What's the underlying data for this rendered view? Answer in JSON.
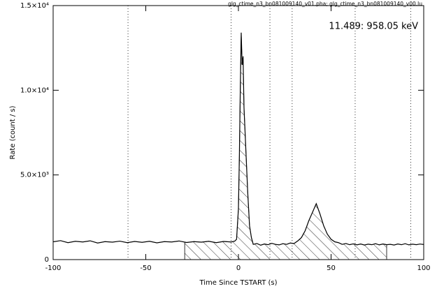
{
  "chart_data": {
    "type": "line",
    "title": "glg_ctime_n3_bn081009140_v01.pha; glg_ctime_n3_bn081009140_v00.lu",
    "annotation": "11.489: 958.05 keV",
    "x_label": "Time Since TSTART (s)",
    "y_label": "Rate (count / s)",
    "xlim": [
      -100,
      100
    ],
    "ylim": [
      0,
      15000
    ],
    "xticks": [
      -100,
      -50,
      0,
      50,
      100
    ],
    "yticks": [
      0,
      {
        "value": 5000,
        "label": "5.0×10³"
      },
      {
        "value": 10000,
        "label": "1.0×10⁴"
      },
      {
        "value": 15000,
        "label": "1.5×10⁴"
      }
    ],
    "dotted_lines": [
      -59.6,
      -4,
      17,
      29,
      63,
      93
    ],
    "source_interval": [
      -29,
      80
    ],
    "x": [
      -100,
      -96,
      -92,
      -88,
      -84,
      -80,
      -76,
      -72,
      -68,
      -64,
      -60,
      -56,
      -52,
      -48,
      -44,
      -40,
      -36,
      -32,
      -28,
      -24,
      -20,
      -16,
      -12,
      -8,
      -4,
      -2,
      -1,
      0,
      0.5,
      1,
      1.5,
      2,
      2.5,
      3,
      4,
      5,
      6,
      7,
      8,
      10,
      12,
      14,
      16,
      18,
      20,
      22,
      24,
      26,
      28,
      30,
      32,
      34,
      36,
      38,
      40,
      42,
      43,
      44,
      46,
      48,
      50,
      52,
      54,
      56,
      58,
      60,
      62,
      64,
      66,
      68,
      70,
      72,
      74,
      76,
      78,
      80,
      82,
      84,
      86,
      88,
      90,
      92,
      94,
      96,
      98,
      100
    ],
    "series": [
      {
        "color": "#000000",
        "values": [
          1050,
          1120,
          1000,
          1080,
          1040,
          1110,
          980,
          1060,
          1030,
          1090,
          1000,
          1070,
          1020,
          1080,
          990,
          1060,
          1040,
          1100,
          1010,
          1060,
          1030,
          1080,
          1000,
          1070,
          1040,
          1090,
          1200,
          3000,
          6000,
          10000,
          13400,
          11500,
          12000,
          9000,
          6500,
          4000,
          2000,
          1300,
          900,
          950,
          850,
          920,
          880,
          960,
          900,
          870,
          940,
          900,
          980,
          950,
          1100,
          1300,
          1700,
          2300,
          2800,
          3300,
          3000,
          2700,
          2000,
          1500,
          1200,
          1050,
          1000,
          900,
          950,
          880,
          930,
          870,
          920,
          860,
          910,
          880,
          940,
          870,
          920,
          880,
          900,
          860,
          920,
          880,
          940,
          870,
          910,
          880,
          920,
          890
        ]
      }
    ]
  }
}
